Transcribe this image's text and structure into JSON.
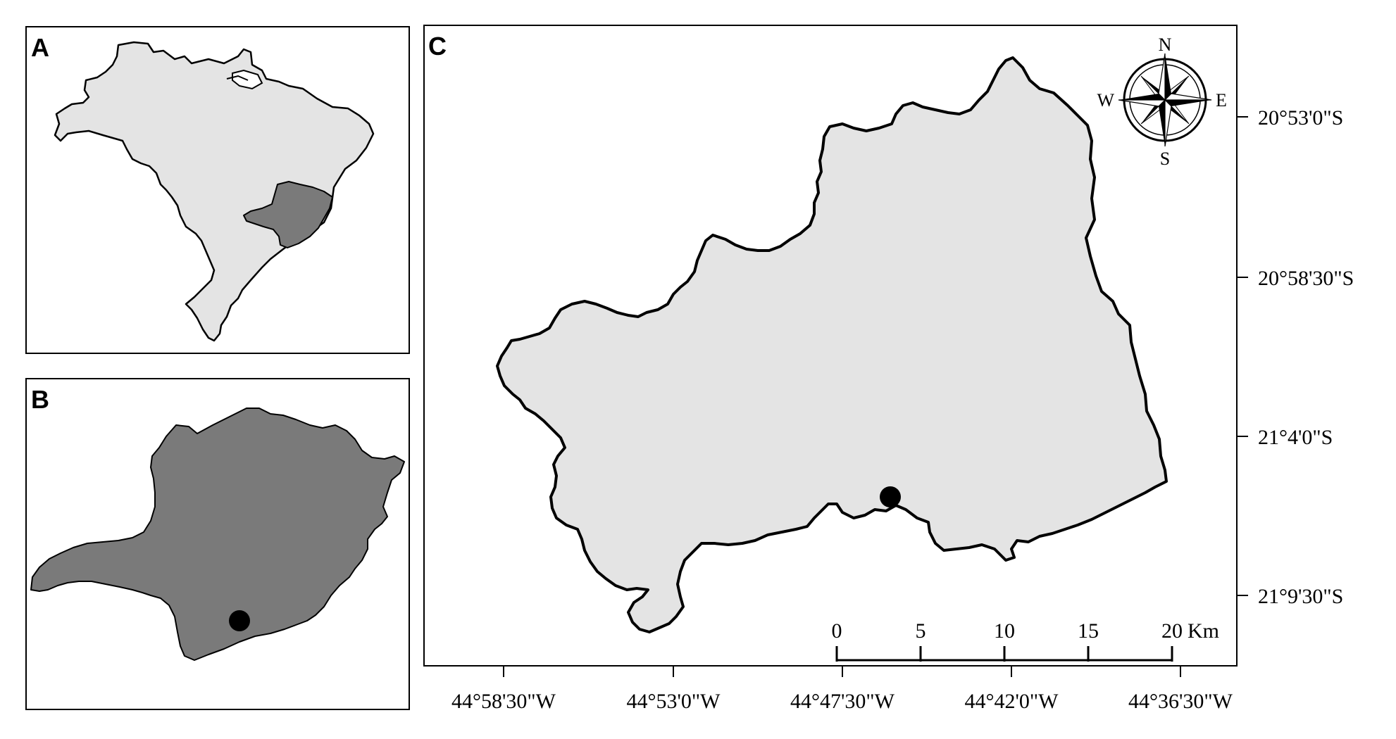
{
  "panels": {
    "a": {
      "letter": "A",
      "description_country_fill": "#e4e4e4",
      "state_fill": "#7a7a7a"
    },
    "b": {
      "letter": "B",
      "state_fill": "#7a7a7a",
      "marker_color": "#000000"
    },
    "c": {
      "letter": "C",
      "basin_fill": "#e4e4e4",
      "marker_color": "#000000"
    }
  },
  "compass": {
    "north": "N",
    "south": "S",
    "east": "E",
    "west": "W"
  },
  "latitude_labels": [
    "20°53'0\"S",
    "20°58'30\"S",
    "21°4'0\"S",
    "21°9'30\"S"
  ],
  "longitude_labels": [
    "44°58'30\"W",
    "44°53'0\"W",
    "44°47'30\"W",
    "44°42'0\"W",
    "44°36'30\"W"
  ],
  "scale_bar": {
    "ticks": [
      "0",
      "5",
      "10",
      "15",
      "20"
    ],
    "unit": "Km"
  },
  "colors": {
    "outline": "#000000",
    "light_fill": "#e4e4e4",
    "dark_fill": "#7a7a7a"
  }
}
